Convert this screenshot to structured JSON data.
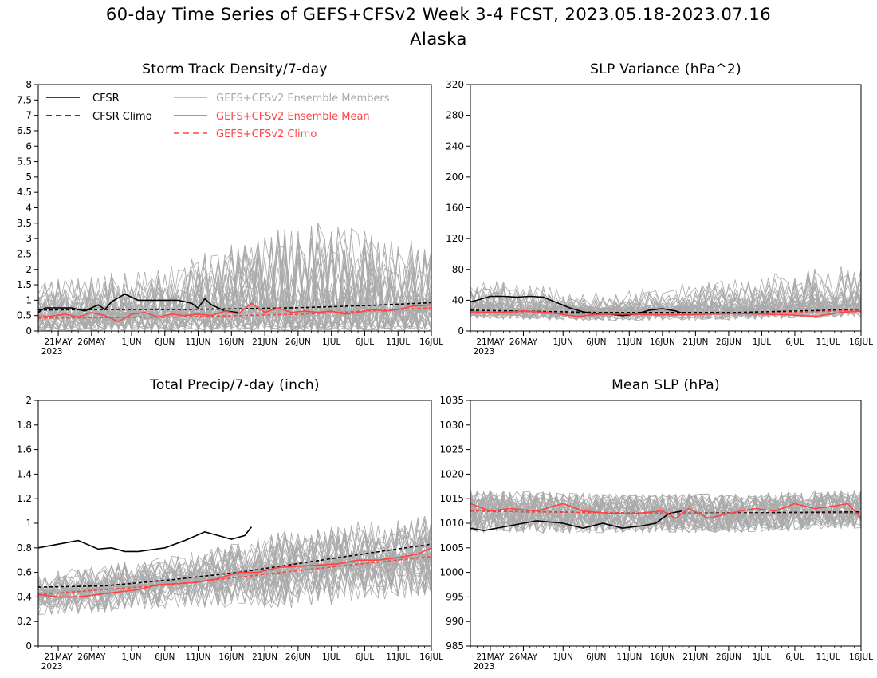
{
  "figure": {
    "title_line1": "60-day Time Series of GEFS+CFSv2 Week 3-4 FCST, 2023.05.18-2023.07.16",
    "title_line2": "Alaska"
  },
  "colors": {
    "cfsr": "#000000",
    "members": "#aaaaaa",
    "ensemble_mean": "#ff4444"
  },
  "legend": {
    "cfsr": "CFSR",
    "cfsr_climo": "CFSR Climo",
    "members": "GEFS+CFSv2 Ensemble Members",
    "ens_mean": "GEFS+CFSv2 Ensemble Mean",
    "ens_climo": "GEFS+CFSv2 Climo"
  },
  "x_axis": {
    "start_date": "2023-05-18",
    "end_date": "2023-07-16",
    "tick_dates": [
      "2023-05-21",
      "2023-05-26",
      "2023-06-01",
      "2023-06-06",
      "2023-06-11",
      "2023-06-16",
      "2023-06-21",
      "2023-06-26",
      "2023-07-01",
      "2023-07-06",
      "2023-07-11",
      "2023-07-16"
    ],
    "tick_labels": [
      "21MAY",
      "26MAY",
      "1JUN",
      "6JUN",
      "11JUN",
      "16JUN",
      "21JUN",
      "26JUN",
      "1JUL",
      "6JUL",
      "11JUL",
      "16JUL"
    ],
    "year_label": "2023"
  },
  "chart_data": [
    {
      "type": "line",
      "title": "Storm Track Density/7-day",
      "ylim": [
        0,
        8
      ],
      "yticks": [
        0,
        0.5,
        1,
        1.5,
        2,
        2.5,
        3,
        3.5,
        4,
        4.5,
        5,
        5.5,
        6,
        6.5,
        7,
        7.5,
        8
      ],
      "series": [
        {
          "name": "CFSR",
          "style": "solid",
          "color": "#000000",
          "x": [
            "2023-05-18",
            "2023-05-19",
            "2023-05-23",
            "2023-05-25",
            "2023-05-27",
            "2023-05-28",
            "2023-05-29",
            "2023-05-31",
            "2023-06-02",
            "2023-06-03",
            "2023-06-05",
            "2023-06-08",
            "2023-06-10",
            "2023-06-11",
            "2023-06-12",
            "2023-06-13",
            "2023-06-14",
            "2023-06-15",
            "2023-06-17"
          ],
          "values": [
            0.6,
            0.75,
            0.75,
            0.65,
            0.85,
            0.7,
            0.95,
            1.2,
            1.0,
            1.0,
            1.0,
            1.0,
            0.9,
            0.75,
            1.05,
            0.85,
            0.75,
            0.65,
            0.6
          ]
        },
        {
          "name": "CFSR Climo",
          "style": "dashed",
          "color": "#000000",
          "x": [
            "2023-05-18",
            "2023-05-28",
            "2023-06-07",
            "2023-06-17",
            "2023-06-27",
            "2023-07-07",
            "2023-07-16"
          ],
          "values": [
            0.68,
            0.7,
            0.7,
            0.72,
            0.76,
            0.83,
            0.92
          ]
        },
        {
          "name": "GEFS+CFSv2 Ensemble Mean",
          "style": "solid",
          "color": "#ff4444",
          "x": [
            "2023-05-18",
            "2023-05-20",
            "2023-05-22",
            "2023-05-24",
            "2023-05-26",
            "2023-05-28",
            "2023-05-30",
            "2023-06-01",
            "2023-06-03",
            "2023-06-05",
            "2023-06-07",
            "2023-06-09",
            "2023-06-11",
            "2023-06-13",
            "2023-06-15",
            "2023-06-17",
            "2023-06-19",
            "2023-06-21",
            "2023-06-23",
            "2023-06-25",
            "2023-06-27",
            "2023-06-29",
            "2023-07-01",
            "2023-07-03",
            "2023-07-05",
            "2023-07-07",
            "2023-07-09",
            "2023-07-11",
            "2023-07-13",
            "2023-07-16"
          ],
          "values": [
            0.45,
            0.48,
            0.55,
            0.45,
            0.6,
            0.5,
            0.3,
            0.55,
            0.6,
            0.45,
            0.55,
            0.5,
            0.55,
            0.5,
            0.65,
            0.55,
            0.9,
            0.6,
            0.75,
            0.6,
            0.65,
            0.6,
            0.65,
            0.55,
            0.6,
            0.7,
            0.65,
            0.7,
            0.8,
            0.85
          ]
        },
        {
          "name": "GEFS+CFSv2 Climo",
          "style": "dashed",
          "color": "#ff4444",
          "x": [
            "2023-05-18",
            "2023-06-07",
            "2023-06-27",
            "2023-07-16"
          ],
          "values": [
            0.42,
            0.45,
            0.55,
            0.75
          ]
        }
      ],
      "members_band": {
        "base": [
          0.5,
          0.55,
          0.6,
          0.68
        ],
        "spread_max": [
          1.5,
          2.1,
          4.1,
          2.9
        ]
      }
    },
    {
      "type": "line",
      "title": "SLP Variance (hPa^2)",
      "ylim": [
        0,
        320
      ],
      "yticks": [
        0,
        40,
        80,
        120,
        160,
        200,
        240,
        280,
        320
      ],
      "series": [
        {
          "name": "CFSR",
          "style": "solid",
          "color": "#000000",
          "x": [
            "2023-05-18",
            "2023-05-19",
            "2023-05-21",
            "2023-05-23",
            "2023-05-25",
            "2023-05-27",
            "2023-05-29",
            "2023-05-31",
            "2023-06-02",
            "2023-06-04",
            "2023-06-06",
            "2023-06-08",
            "2023-06-10",
            "2023-06-12",
            "2023-06-14",
            "2023-06-16",
            "2023-06-18",
            "2023-06-19"
          ],
          "values": [
            38,
            40,
            45,
            45,
            44,
            45,
            44,
            37,
            30,
            25,
            22,
            22,
            20,
            22,
            27,
            29,
            26,
            23
          ]
        },
        {
          "name": "CFSR Climo",
          "style": "dashed",
          "color": "#000000",
          "x": [
            "2023-05-18",
            "2023-06-07",
            "2023-06-27",
            "2023-07-16"
          ],
          "values": [
            27,
            24,
            24,
            28
          ]
        },
        {
          "name": "GEFS+CFSv2 Ensemble Mean",
          "style": "solid",
          "color": "#ff4444",
          "x": [
            "2023-05-18",
            "2023-05-22",
            "2023-05-26",
            "2023-05-30",
            "2023-06-03",
            "2023-06-07",
            "2023-06-11",
            "2023-06-15",
            "2023-06-19",
            "2023-06-23",
            "2023-06-27",
            "2023-07-01",
            "2023-07-05",
            "2023-07-09",
            "2023-07-13",
            "2023-07-16"
          ],
          "values": [
            25,
            24,
            26,
            24,
            19,
            22,
            22,
            21,
            21,
            22,
            23,
            22,
            21,
            19,
            24,
            26
          ]
        },
        {
          "name": "GEFS+CFSv2 Climo",
          "style": "dashed",
          "color": "#ff4444",
          "x": [
            "2023-05-18",
            "2023-06-07",
            "2023-06-27",
            "2023-07-16"
          ],
          "values": [
            25,
            22,
            22,
            27
          ]
        }
      ],
      "members_band": {
        "base": [
          25,
          22,
          23,
          27
        ],
        "spread_max": [
          65,
          45,
          60,
          85
        ]
      }
    },
    {
      "type": "line",
      "title": "Total Precip/7-day (inch)",
      "ylim": [
        0,
        2
      ],
      "yticks": [
        0,
        0.2,
        0.4,
        0.6,
        0.8,
        1,
        1.2,
        1.4,
        1.6,
        1.8,
        2
      ],
      "series": [
        {
          "name": "CFSR",
          "style": "solid",
          "color": "#000000",
          "x": [
            "2023-05-18",
            "2023-05-21",
            "2023-05-24",
            "2023-05-27",
            "2023-05-29",
            "2023-05-31",
            "2023-06-02",
            "2023-06-06",
            "2023-06-09",
            "2023-06-12",
            "2023-06-14",
            "2023-06-16",
            "2023-06-18",
            "2023-06-19"
          ],
          "values": [
            0.8,
            0.83,
            0.86,
            0.79,
            0.8,
            0.77,
            0.77,
            0.8,
            0.86,
            0.93,
            0.9,
            0.87,
            0.9,
            0.97
          ]
        },
        {
          "name": "CFSR Climo",
          "style": "dashed",
          "color": "#000000",
          "x": [
            "2023-05-18",
            "2023-05-28",
            "2023-06-07",
            "2023-06-17",
            "2023-06-27",
            "2023-07-07",
            "2023-07-16"
          ],
          "values": [
            0.48,
            0.49,
            0.54,
            0.6,
            0.68,
            0.76,
            0.83
          ]
        },
        {
          "name": "GEFS+CFSv2 Ensemble Mean",
          "style": "solid",
          "color": "#ff4444",
          "x": [
            "2023-05-18",
            "2023-05-21",
            "2023-05-24",
            "2023-05-27",
            "2023-05-30",
            "2023-06-02",
            "2023-06-05",
            "2023-06-08",
            "2023-06-11",
            "2023-06-14",
            "2023-06-17",
            "2023-06-20",
            "2023-06-23",
            "2023-06-26",
            "2023-06-29",
            "2023-07-02",
            "2023-07-05",
            "2023-07-08",
            "2023-07-11",
            "2023-07-14",
            "2023-07-16"
          ],
          "values": [
            0.42,
            0.4,
            0.4,
            0.42,
            0.44,
            0.46,
            0.5,
            0.51,
            0.52,
            0.55,
            0.6,
            0.6,
            0.64,
            0.65,
            0.66,
            0.67,
            0.7,
            0.7,
            0.72,
            0.75,
            0.8
          ]
        },
        {
          "name": "GEFS+CFSv2 Climo",
          "style": "dashed",
          "color": "#ff4444",
          "x": [
            "2023-05-18",
            "2023-06-07",
            "2023-06-27",
            "2023-07-16"
          ],
          "values": [
            0.42,
            0.5,
            0.62,
            0.73
          ]
        }
      ],
      "members_band": {
        "base": [
          0.42,
          0.52,
          0.64,
          0.74
        ],
        "spread_max": [
          0.3,
          0.35,
          0.55,
          0.55
        ]
      }
    },
    {
      "type": "line",
      "title": "Mean SLP (hPa)",
      "ylim": [
        985,
        1035
      ],
      "yticks": [
        985,
        990,
        995,
        1000,
        1005,
        1010,
        1015,
        1020,
        1025,
        1030,
        1035
      ],
      "series": [
        {
          "name": "CFSR",
          "style": "solid",
          "color": "#000000",
          "x": [
            "2023-05-18",
            "2023-05-20",
            "2023-05-24",
            "2023-05-28",
            "2023-06-01",
            "2023-06-04",
            "2023-06-07",
            "2023-06-10",
            "2023-06-13",
            "2023-06-15",
            "2023-06-17",
            "2023-06-19"
          ],
          "values": [
            1009,
            1008.5,
            1009.5,
            1010.5,
            1010,
            1009,
            1010,
            1009,
            1009.5,
            1010,
            1012,
            1012.5
          ]
        },
        {
          "name": "CFSR Climo",
          "style": "dashed",
          "color": "#000000",
          "x": [
            "2023-05-18",
            "2023-06-17",
            "2023-07-16"
          ],
          "values": [
            1012.5,
            1012,
            1012.3
          ]
        },
        {
          "name": "GEFS+CFSv2 Ensemble Mean",
          "style": "solid",
          "color": "#ff4444",
          "x": [
            "2023-05-18",
            "2023-05-21",
            "2023-05-24",
            "2023-05-28",
            "2023-06-01",
            "2023-06-04",
            "2023-06-08",
            "2023-06-12",
            "2023-06-16",
            "2023-06-18",
            "2023-06-20",
            "2023-06-23",
            "2023-06-26",
            "2023-06-30",
            "2023-07-03",
            "2023-07-06",
            "2023-07-09",
            "2023-07-12",
            "2023-07-14",
            "2023-07-16"
          ],
          "values": [
            1014,
            1012.5,
            1013,
            1012.5,
            1014,
            1012.5,
            1012,
            1012,
            1012.5,
            1011,
            1013,
            1011,
            1012,
            1013,
            1012.5,
            1014,
            1013,
            1013.5,
            1014,
            1011
          ]
        },
        {
          "name": "GEFS+CFSv2 Climo",
          "style": "dashed",
          "color": "#ff4444",
          "x": [
            "2023-05-18",
            "2023-06-17",
            "2023-07-16"
          ],
          "values": [
            1012.5,
            1012,
            1012
          ]
        }
      ],
      "members_band": {
        "base": [
          1012.5,
          1012,
          1012,
          1013
        ],
        "spread_max": [
          9,
          8,
          8,
          8
        ]
      }
    }
  ]
}
